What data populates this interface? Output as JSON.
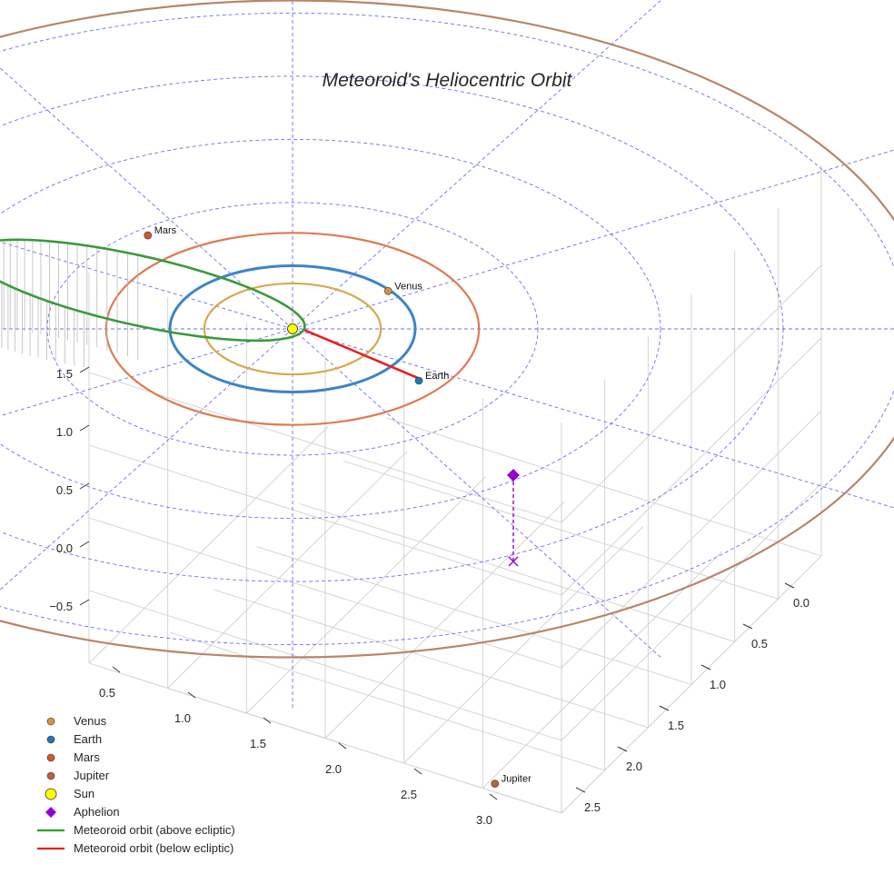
{
  "chart_data": {
    "type": "3d-orbit",
    "title": "Meteoroid's Heliocentric Orbit",
    "axes": {
      "x": {
        "ticks": [
          "0.5",
          "1.0",
          "1.5",
          "2.0",
          "2.5",
          "3.0"
        ]
      },
      "y": {
        "ticks": [
          "0.0",
          "0.5",
          "1.0",
          "1.5",
          "2.0",
          "2.5"
        ]
      },
      "z": {
        "ticks": [
          "−0.5",
          "0.0",
          "0.5",
          "1.0",
          "1.5"
        ]
      }
    },
    "grid": true,
    "ecliptic_reference_circles_au": [
      1,
      2,
      3,
      4,
      5
    ],
    "bodies": [
      {
        "name": "Venus",
        "label": "Venus",
        "orbit_radius_au": 0.72,
        "color": "#d4963a",
        "orbit_color": "#d8a84e"
      },
      {
        "name": "Earth",
        "label": "Earth",
        "orbit_radius_au": 1.0,
        "color": "#1f77b4",
        "orbit_color": "#3d85c6"
      },
      {
        "name": "Mars",
        "label": "Mars",
        "orbit_radius_au": 1.52,
        "color": "#d05a28",
        "orbit_color": "#e07a52"
      },
      {
        "name": "Jupiter",
        "label": "Jupiter",
        "orbit_radius_au": 5.2,
        "color": "#c0603a",
        "orbit_color": "#b8866a"
      }
    ],
    "sun": {
      "name": "Sun",
      "color": "#ffff00"
    },
    "meteoroid_orbit": {
      "semi_major_axis_au": 1.5,
      "eccentricity": 0.94,
      "inclination_deg": 10,
      "perihelion_distance_au": 0.09,
      "aphelion_distance_au": 2.91,
      "above_color": "#3a9a3a",
      "below_color": "#e82020"
    },
    "aphelion": {
      "name": "Aphelion",
      "color": "#9400d3",
      "distance_au": 2.91
    },
    "legend": {
      "position": "bottom-left",
      "entries": [
        {
          "label": "Venus",
          "symbol": "dot",
          "color": "#d4963a"
        },
        {
          "label": "Earth",
          "symbol": "dot",
          "color": "#1f77b4"
        },
        {
          "label": "Mars",
          "symbol": "dot",
          "color": "#d05a28"
        },
        {
          "label": "Jupiter",
          "symbol": "dot",
          "color": "#c0603a"
        },
        {
          "label": "Sun",
          "symbol": "big-dot",
          "color": "#ffff00"
        },
        {
          "label": "Aphelion",
          "symbol": "diamond",
          "color": "#9400d3"
        },
        {
          "label": "Meteoroid orbit (above ecliptic)",
          "symbol": "line",
          "color": "#2ca02c"
        },
        {
          "label": "Meteoroid orbit (below ecliptic)",
          "symbol": "line",
          "color": "#e82020"
        }
      ]
    }
  }
}
